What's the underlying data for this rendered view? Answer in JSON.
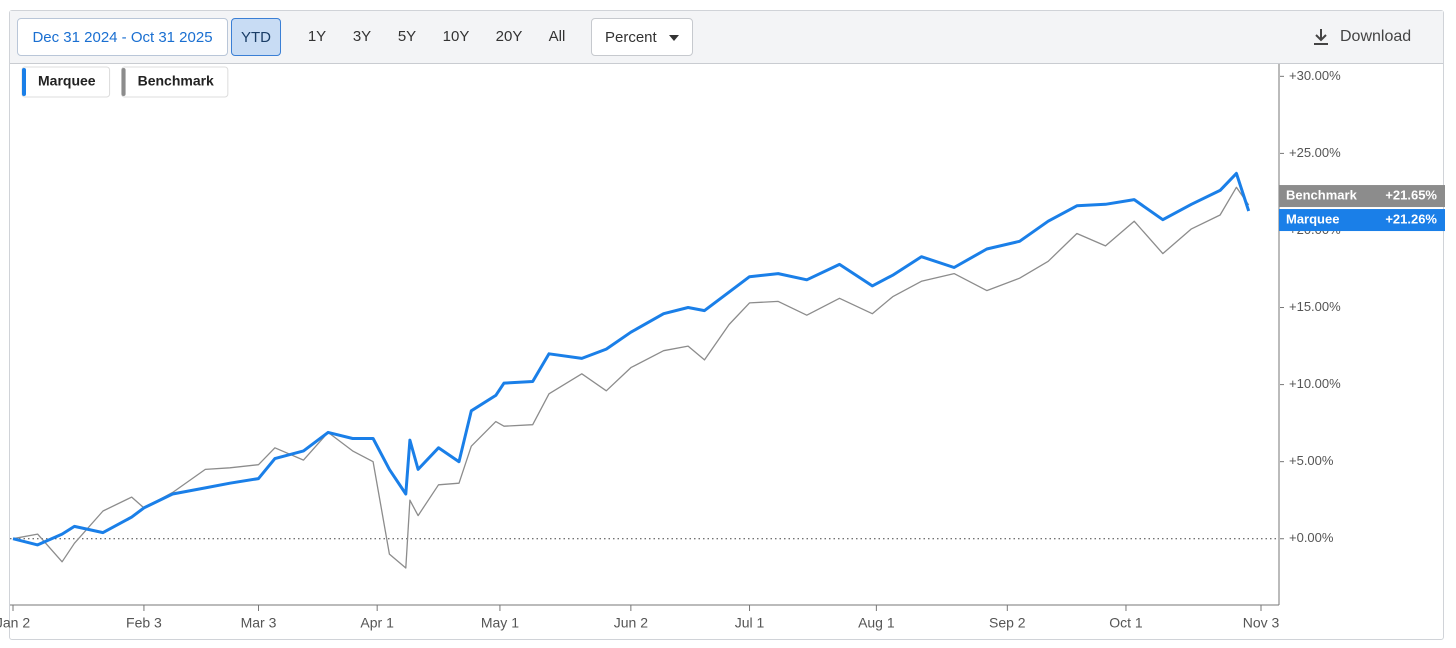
{
  "toolbar": {
    "date_range": "Dec 31 2024 - Oct 31 2025",
    "periods": [
      "YTD",
      "1Y",
      "3Y",
      "5Y",
      "10Y",
      "20Y",
      "All"
    ],
    "active_period": "YTD",
    "unit": "Percent",
    "download": "Download"
  },
  "chart_data": {
    "type": "line",
    "x": [
      "Jan 2",
      "Jan 8",
      "Jan 14",
      "Jan 17",
      "Jan 24",
      "Jan 31",
      "Feb 3",
      "Feb 10",
      "Feb 18",
      "Feb 24",
      "Mar 3",
      "Mar 7",
      "Mar 14",
      "Mar 20",
      "Mar 26",
      "Mar 31",
      "Apr 4",
      "Apr 8",
      "Apr 9",
      "Apr 11",
      "Apr 16",
      "Apr 21",
      "Apr 24",
      "Apr 30",
      "May 2",
      "May 9",
      "May 13",
      "May 21",
      "May 27",
      "Jun 2",
      "Jun 10",
      "Jun 16",
      "Jun 20",
      "Jun 26",
      "Jul 1",
      "Jul 8",
      "Jul 15",
      "Jul 23",
      "Jul 31",
      "Aug 5",
      "Aug 12",
      "Aug 20",
      "Aug 28",
      "Sep 5",
      "Sep 12",
      "Sep 19",
      "Sep 26",
      "Oct 3",
      "Oct 10",
      "Oct 17",
      "Oct 24",
      "Oct 28",
      "Oct 31"
    ],
    "series": [
      {
        "name": "Marquee",
        "color": "#1a7fe8",
        "width": 3,
        "values": [
          0,
          -0.4,
          0.3,
          0.8,
          0.4,
          1.4,
          2.0,
          2.9,
          3.3,
          3.6,
          3.9,
          5.2,
          5.7,
          6.9,
          6.5,
          6.5,
          4.5,
          2.9,
          6.4,
          4.5,
          5.9,
          5.0,
          8.3,
          9.3,
          10.1,
          10.2,
          12.0,
          11.7,
          12.3,
          13.4,
          14.6,
          15.0,
          14.8,
          16.0,
          17.0,
          17.2,
          16.8,
          17.8,
          16.4,
          17.1,
          18.3,
          17.6,
          18.8,
          19.3,
          20.6,
          21.6,
          21.7,
          22.0,
          20.7,
          21.7,
          22.6,
          23.7,
          21.26
        ],
        "value_labels": [
          null,
          null,
          null,
          null,
          null,
          null,
          null,
          null,
          null,
          null,
          null,
          null,
          null,
          null,
          null,
          null,
          null,
          null,
          null,
          null,
          null,
          null,
          null,
          null,
          null,
          null,
          null,
          null,
          null,
          null,
          null,
          null,
          null,
          null,
          null,
          null,
          null,
          null,
          null,
          null,
          null,
          null,
          null,
          null,
          null,
          null,
          null,
          null,
          null,
          null,
          null,
          null,
          "+21.26%"
        ]
      },
      {
        "name": "Benchmark",
        "color": "#8c8c8c",
        "width": 1.3,
        "values": [
          0,
          0.3,
          -1.5,
          -0.3,
          1.8,
          2.7,
          2.0,
          3.0,
          4.5,
          4.6,
          4.8,
          5.9,
          5.1,
          6.9,
          5.7,
          5.0,
          -1.0,
          -1.9,
          2.5,
          1.5,
          3.5,
          3.6,
          6.0,
          7.6,
          7.3,
          7.4,
          9.4,
          10.7,
          9.6,
          11.1,
          12.2,
          12.5,
          11.6,
          13.9,
          15.3,
          15.4,
          14.5,
          15.6,
          14.6,
          15.7,
          16.7,
          17.2,
          16.1,
          16.9,
          18.0,
          19.8,
          19.0,
          20.6,
          18.5,
          20.1,
          21.0,
          22.8,
          21.65
        ],
        "value_labels": [
          null,
          null,
          null,
          null,
          null,
          null,
          null,
          null,
          null,
          null,
          null,
          null,
          null,
          null,
          null,
          null,
          null,
          null,
          null,
          null,
          null,
          null,
          null,
          null,
          null,
          null,
          null,
          null,
          null,
          null,
          null,
          null,
          null,
          null,
          null,
          null,
          null,
          null,
          null,
          null,
          null,
          null,
          null,
          null,
          null,
          null,
          null,
          null,
          null,
          null,
          null,
          null,
          "+21.65%"
        ]
      }
    ],
    "xlim": [
      "Jan 2",
      "Nov 3"
    ],
    "xticks": [
      "Jan 2",
      "Feb 3",
      "Mar 3",
      "Apr 1",
      "May 1",
      "Jun 2",
      "Jul 1",
      "Aug 1",
      "Sep 2",
      "Oct 1",
      "Nov 3"
    ],
    "ylim": [
      -4.3,
      30.8
    ],
    "yticks": [
      {
        "value": 0,
        "label": "+0.00%"
      },
      {
        "value": 5,
        "label": "+5.00%"
      },
      {
        "value": 10,
        "label": "+10.00%"
      },
      {
        "value": 15,
        "label": "+15.00%"
      },
      {
        "value": 20,
        "label": "+20.00%"
      },
      {
        "value": 25,
        "label": "+25.00%"
      },
      {
        "value": 30,
        "label": "+30.00%"
      }
    ],
    "y_axis_side": "right",
    "zero_line": true,
    "grid": false,
    "legend": "top-left"
  }
}
